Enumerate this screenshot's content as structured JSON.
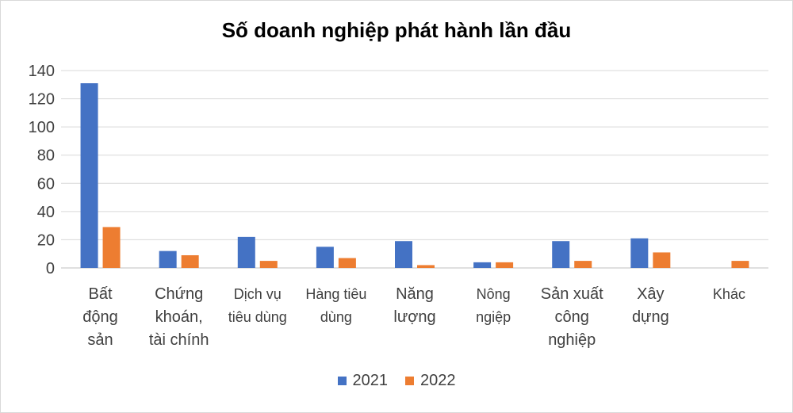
{
  "chart_data": {
    "type": "bar",
    "title": "Số doanh nghiệp phát hành lần đầu",
    "categories": [
      "Bất động sản",
      "Chứng khoán, tài chính",
      "Dịch vụ tiêu dùng",
      "Hàng tiêu dùng",
      "Năng lượng",
      "Nông ngiệp",
      "Sản xuất công nghiệp",
      "Xây dựng",
      "Khác"
    ],
    "category_lines": [
      [
        "Bất",
        "động",
        "sản"
      ],
      [
        "Chứng",
        "khoán,",
        "tài chính"
      ],
      [
        "Dịch vụ",
        "tiêu dùng"
      ],
      [
        "Hàng tiêu",
        "dùng"
      ],
      [
        "Năng",
        "lượng"
      ],
      [
        "Nông",
        "ngiệp"
      ],
      [
        "Sản xuất",
        "công",
        "nghiệp"
      ],
      [
        "Xây",
        "dựng"
      ],
      [
        "Khác"
      ]
    ],
    "series": [
      {
        "name": "2021",
        "color": "#4472C4",
        "values": [
          131,
          12,
          22,
          15,
          19,
          4,
          19,
          21,
          0
        ]
      },
      {
        "name": "2022",
        "color": "#ED7D31",
        "values": [
          29,
          9,
          5,
          7,
          2,
          4,
          5,
          11,
          5
        ]
      }
    ],
    "ylim": [
      0,
      140
    ],
    "yticks": [
      0,
      20,
      40,
      60,
      80,
      100,
      120,
      140
    ],
    "xlabel": "",
    "ylabel": "",
    "grid": true,
    "legend_position": "bottom"
  }
}
